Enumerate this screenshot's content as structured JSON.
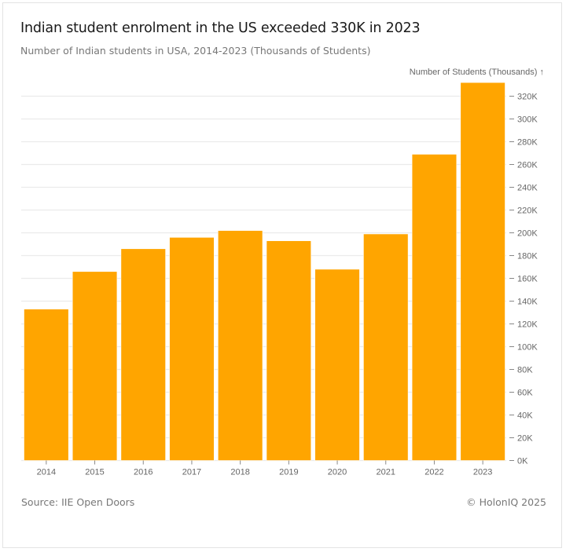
{
  "title": "Indian student enrolment in the US exceeded 330K in 2023",
  "subtitle": "Number of Indian students in USA, 2014-2023 (Thousands of Students)",
  "footer": {
    "source": "Source: IIE Open Doors",
    "copyright": "© HolonIQ 2025"
  },
  "colors": {
    "bar": "#FFA500",
    "grid": "#ebebeb",
    "text": "#666666"
  },
  "chart_data": {
    "type": "bar",
    "title": "Indian student enrolment in the US exceeded 330K in 2023",
    "subtitle": "Number of Indian students in USA, 2014-2023 (Thousands of Students)",
    "xlabel": "",
    "ylabel": "Number of Students (Thousands) ↑",
    "categories": [
      "2014",
      "2015",
      "2016",
      "2017",
      "2018",
      "2019",
      "2020",
      "2021",
      "2022",
      "2023"
    ],
    "values": [
      133,
      166,
      186,
      196,
      202,
      193,
      168,
      199,
      269,
      332
    ],
    "ylim": [
      0,
      332
    ],
    "yticks": [
      0,
      20,
      40,
      60,
      80,
      100,
      120,
      140,
      160,
      180,
      200,
      220,
      240,
      260,
      280,
      300,
      320
    ],
    "ytick_labels": [
      "0K",
      "20K",
      "40K",
      "60K",
      "80K",
      "100K",
      "120K",
      "140K",
      "160K",
      "180K",
      "200K",
      "220K",
      "240K",
      "260K",
      "280K",
      "300K",
      "320K"
    ],
    "y_axis_side": "right",
    "grid": true,
    "legend": "none"
  }
}
